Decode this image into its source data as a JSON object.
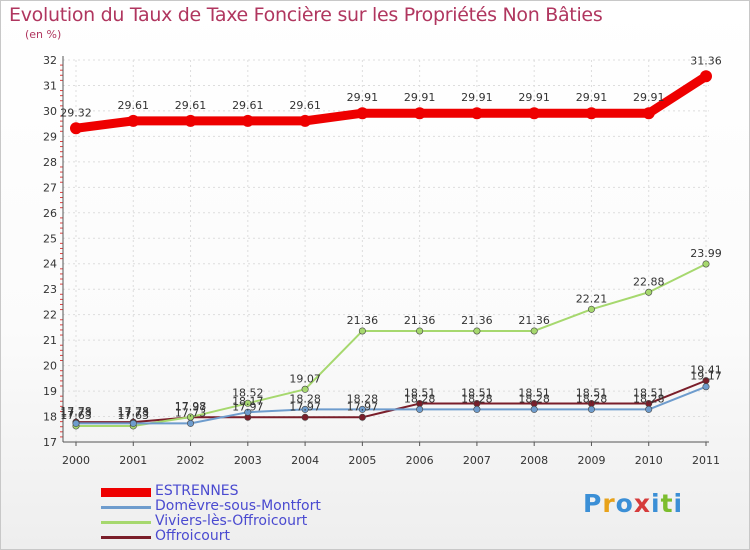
{
  "title": "Evolution du Taux de Taxe Foncière sur les Propriétés Non Bâties",
  "unit_label": "(en %)",
  "logo": {
    "letters": [
      "P",
      "r",
      "o",
      "x",
      "i",
      "t",
      "i"
    ],
    "colors": [
      "#3b8fd6",
      "#e8a21a",
      "#3b8fd6",
      "#d63b3b",
      "#3b8fd6",
      "#7cbd2e",
      "#3b8fd6"
    ]
  },
  "chart_data": {
    "type": "line",
    "title": "Evolution du Taux de Taxe Foncière sur les Propriétés Non Bâties",
    "ylabel": "(en %)",
    "xlabel": "",
    "x": [
      "2000",
      "2001",
      "2002",
      "2003",
      "2004",
      "2005",
      "2006",
      "2007",
      "2008",
      "2009",
      "2010",
      "2011"
    ],
    "ylim": [
      17,
      32
    ],
    "yticks": [
      "17",
      "18",
      "19",
      "20",
      "21",
      "22",
      "23",
      "24",
      "25",
      "26",
      "27",
      "28",
      "29",
      "30",
      "31",
      "32"
    ],
    "series": [
      {
        "name": "ESTRENNES",
        "color": "#ee0000",
        "width": "thick",
        "values": [
          29.32,
          29.61,
          29.61,
          29.61,
          29.61,
          29.91,
          29.91,
          29.91,
          29.91,
          29.91,
          29.91,
          31.36
        ],
        "labels": [
          "29.32",
          "29.61",
          "29.61",
          "29.61",
          "29.61",
          "29.91",
          "29.91",
          "29.91",
          "29.91",
          "29.91",
          "29.91",
          "31.36"
        ]
      },
      {
        "name": "Domèvre-sous-Montfort",
        "color": "#6e9ccd",
        "width": "thin",
        "values": [
          17.73,
          17.73,
          17.73,
          18.17,
          18.28,
          18.28,
          18.28,
          18.28,
          18.28,
          18.28,
          18.28,
          19.17
        ],
        "labels": [
          "17.73",
          "17.73",
          "17.73",
          "18.17",
          "18.28",
          "18.28",
          "18.28",
          "18.28",
          "18.28",
          "18.28",
          "18.28",
          "19.17"
        ]
      },
      {
        "name": "Viviers-lès-Offroicourt",
        "color": "#a6d86e",
        "width": "thin",
        "values": [
          17.63,
          17.63,
          17.98,
          18.52,
          19.07,
          21.36,
          21.36,
          21.36,
          21.36,
          22.21,
          22.88,
          23.99
        ],
        "labels": [
          "17.63",
          "17.63",
          "17.98",
          "18.52",
          "19.07",
          "21.36",
          "21.36",
          "21.36",
          "21.36",
          "22.21",
          "22.88",
          "23.99"
        ]
      },
      {
        "name": "Offroicourt",
        "color": "#7a1e2a",
        "width": "thin",
        "values": [
          17.78,
          17.78,
          17.97,
          17.97,
          17.97,
          17.97,
          18.51,
          18.51,
          18.51,
          18.51,
          18.51,
          19.41
        ],
        "labels": [
          "17.78",
          "17.78",
          "17.97",
          "17.97",
          "17.97",
          "17.97",
          "18.51",
          "18.51",
          "18.51",
          "18.51",
          "18.51",
          "19.41"
        ]
      }
    ]
  }
}
